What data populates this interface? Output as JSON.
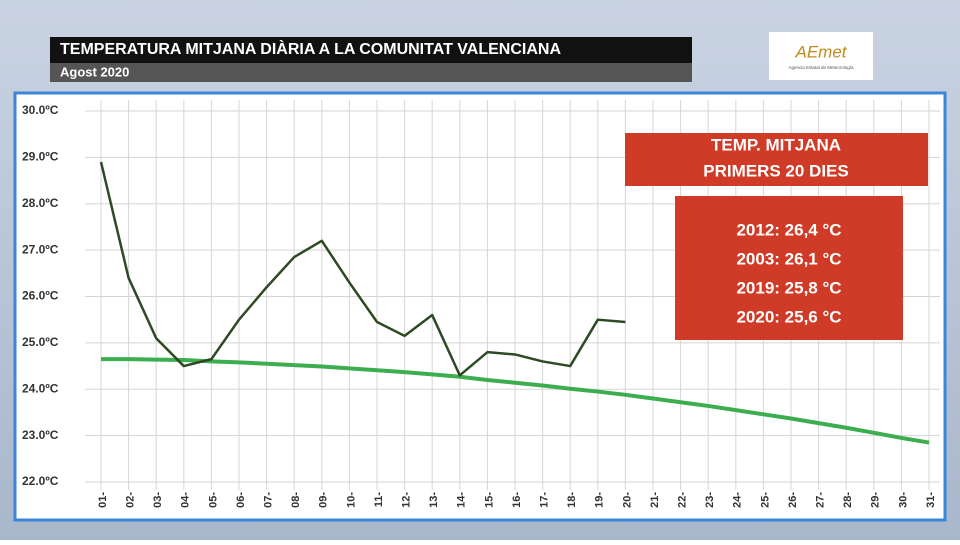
{
  "chart_data": {
    "type": "line",
    "title": "TEMPERATURA MITJANA DIÀRIA A LA COMUNITAT VALENCIANA",
    "subtitle": "Agost 2020",
    "logo": {
      "name": "AEmet",
      "caption": "Agencia Estatal de Meteorología"
    },
    "categories": [
      "01-",
      "02-",
      "03-",
      "04-",
      "05-",
      "06-",
      "07-",
      "08-",
      "09-",
      "10-",
      "11-",
      "12-",
      "13-",
      "14-",
      "15-",
      "16-",
      "17-",
      "18-",
      "19-",
      "20-",
      "21-",
      "22-",
      "23-",
      "24-",
      "25-",
      "26-",
      "27-",
      "28-",
      "29-",
      "30-",
      "31-"
    ],
    "series": [
      {
        "name": "Agost 2020",
        "color": "#2e4a24",
        "values": [
          28.9,
          26.4,
          25.1,
          24.5,
          24.65,
          25.5,
          26.2,
          26.85,
          27.2,
          26.3,
          25.45,
          25.15,
          25.6,
          24.3,
          24.8,
          24.75,
          24.6,
          24.5,
          25.5,
          25.45,
          null,
          null,
          null,
          null,
          null,
          null,
          null,
          null,
          null,
          null,
          null
        ]
      },
      {
        "name": "Mitjana",
        "color": "#3cae4f",
        "values": [
          24.65,
          24.65,
          24.64,
          24.63,
          24.6,
          24.58,
          24.55,
          24.52,
          24.49,
          24.45,
          24.41,
          24.37,
          24.32,
          24.27,
          24.2,
          24.14,
          24.08,
          24.01,
          23.95,
          23.88,
          23.8,
          23.72,
          23.64,
          23.55,
          23.46,
          23.37,
          23.27,
          23.17,
          23.06,
          22.95,
          22.85
        ]
      }
    ],
    "ylim": [
      22,
      30
    ],
    "yticks": [
      {
        "value": 22,
        "label": "22.0ºC"
      },
      {
        "value": 23,
        "label": "23.0ºC"
      },
      {
        "value": 24,
        "label": "24.0ºC"
      },
      {
        "value": 25,
        "label": "25.0ºC"
      },
      {
        "value": 26,
        "label": "26.0ºC"
      },
      {
        "value": 27,
        "label": "27.0ºC"
      },
      {
        "value": 28,
        "label": "28.0ºC"
      },
      {
        "value": 29,
        "label": "29.0ºC"
      },
      {
        "value": 30,
        "label": "30.0ºC"
      }
    ],
    "grid": true,
    "box_title": [
      "TEMP. MITJANA",
      "PRIMERS 20 DIES"
    ],
    "box_lines": [
      "2012:  26,4 °C",
      "2003: 26,1 °C",
      "2019:  25,8 °C",
      "2020: 25,6 °C"
    ]
  }
}
